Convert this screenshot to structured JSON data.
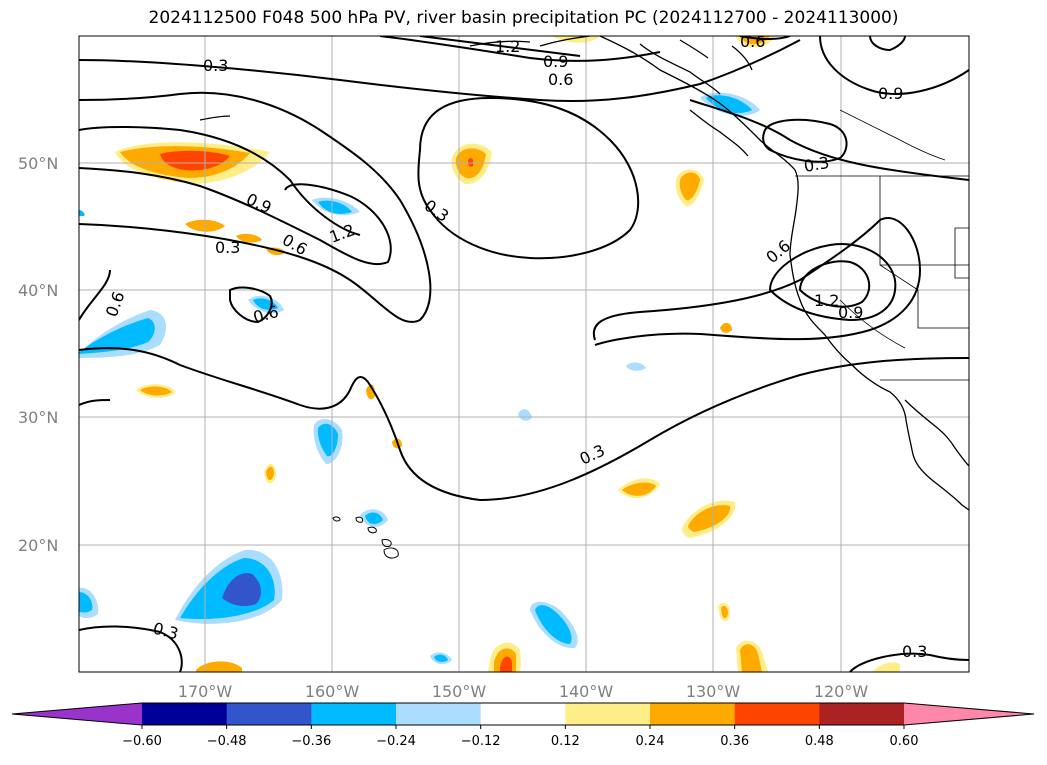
{
  "title": "2024112500 F048 500 hPa PV, river basin precipitation PC (2024112700 - 2024113000)",
  "lat_labels": [
    "50°N",
    "40°N",
    "30°N",
    "20°N"
  ],
  "lon_labels": [
    "170°W",
    "160°W",
    "150°W",
    "140°W",
    "130°W",
    "120°W"
  ],
  "contour_labels": [
    "0.3",
    "1.2",
    "0.9",
    "0.6",
    "0.6",
    "0.9",
    "0.9",
    "0.3",
    "0.3",
    "0.6",
    "1.2",
    "0.3",
    "0.6",
    "0.6",
    "0.6",
    "1.2",
    "0.9",
    "0.3",
    "0.3",
    "0.3"
  ],
  "colorbar": {
    "tick_labels": [
      "−0.60",
      "−0.48",
      "−0.36",
      "−0.24",
      "−0.12",
      "0.12",
      "0.24",
      "0.36",
      "0.48",
      "0.60"
    ],
    "colors": [
      "#9933cc",
      "#000099",
      "#3355cc",
      "#00bbff",
      "#aaddff",
      "#ffffff",
      "#ffee88",
      "#ffaa00",
      "#ff4400",
      "#aa2222",
      "#ff88aa"
    ]
  }
}
